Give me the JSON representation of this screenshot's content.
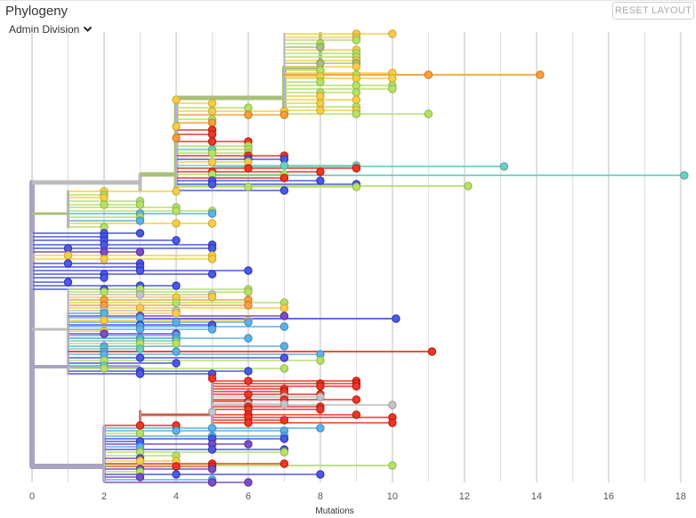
{
  "panel": {
    "title": "Phylogeny",
    "reset_label": "RESET LAYOUT",
    "color_by": "Admin Division",
    "chevron_icon": "chevron-down-icon"
  },
  "colors": {
    "grid": "#dddddd",
    "root": "#a9a3c4",
    "grey": "#bcbcbc",
    "olive": "#a8c07a"
  },
  "chart_data": {
    "type": "phylogenetic-tree",
    "xlabel": "Mutations",
    "xlim": [
      0,
      18.4
    ],
    "x_ticks": [
      0,
      2,
      4,
      6,
      8,
      10,
      12,
      14,
      16,
      18
    ],
    "y_axis": "none",
    "legend": "none",
    "grid": "vertical",
    "palette": {
      "purple": "#7b4fc4",
      "blue": "#4d59e0",
      "lightblue": "#5fb0e8",
      "teal": "#6fcfbf",
      "lime": "#b5e06a",
      "yellow": "#f5cd4a",
      "orange": "#f5a040",
      "red": "#e8382a",
      "grey": "#c4c4c4"
    },
    "notable_tips": [
      {
        "x": 18.1,
        "color": "teal"
      },
      {
        "x": 14.1,
        "color": "orange"
      },
      {
        "x": 13.1,
        "color": "teal"
      },
      {
        "x": 12.1,
        "color": "lime"
      },
      {
        "x": 11.1,
        "color": "red"
      },
      {
        "x": 11.0,
        "color": "orange"
      },
      {
        "x": 10.1,
        "color": "blue"
      }
    ]
  }
}
